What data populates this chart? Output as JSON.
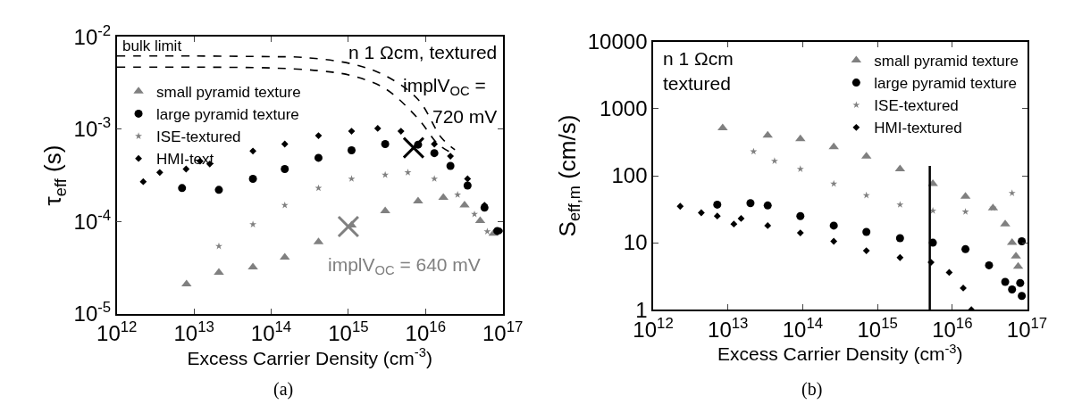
{
  "chart_data": [
    {
      "type": "scatter",
      "xlabel": "Excess Carrier Density (cm$^{-3}$)",
      "ylabel": "τ$_{eff}$ (s)",
      "log": "xy",
      "legend": "top left",
      "xlim": [
        1000000000000.0,
        1e+17
      ],
      "ylim": [
        1e-05,
        0.01
      ],
      "xticks": [
        {
          "value": 1000000000000.0,
          "label": "10$^{12}$"
        },
        {
          "value": 10000000000000.0,
          "label": "10$^{13}$"
        },
        {
          "value": 100000000000000.0,
          "label": "10$^{14}$"
        },
        {
          "value": 1000000000000000.0,
          "label": "10$^{15}$"
        },
        {
          "value": 1e+16,
          "label": "10$^{16}$"
        },
        {
          "value": 1e+17,
          "label": "10$^{17}$"
        }
      ],
      "yticks": [
        {
          "value": 1e-05,
          "label": "10$^{-5}$"
        },
        {
          "value": 0.0001,
          "label": "10$^{-4}$"
        },
        {
          "value": 0.001,
          "label": "10$^{-3}$"
        },
        {
          "value": 0.01,
          "label": "10$^{-2}$"
        }
      ],
      "annotations": [
        "bulk limit",
        "n 1 Ωcm, textured",
        "implV$_{OC}$ =",
        "720 mV",
        "implV$_{OC}$ = 640 mV",
        "(a)"
      ],
      "series": [
        {
          "name": "small pyramid texture",
          "color": "#808080",
          "type": "scatter",
          "marker": "triangle",
          "x": [
            8000000000000.0,
            21000000000000.0,
            58000000000000.0,
            150000000000000.0,
            410000000000000.0,
            1100000000000000.0,
            3000000000000000.0,
            8000000000000000.0,
            1.7e+16,
            3.2e+16,
            5.1e+16,
            7.6e+16
          ],
          "values": [
            2.1e-05,
            2.8e-05,
            3.2e-05,
            4.1e-05,
            6e-05,
            9.1e-05,
            0.00013,
            0.000166,
            0.000182,
            0.00015,
            0.000102,
            7.4e-05
          ]
        },
        {
          "name": "large pyramid texture",
          "color": "#000000",
          "type": "scatter",
          "marker": "circle",
          "x": [
            7000000000000.0,
            21000000000000.0,
            58000000000000.0,
            150000000000000.0,
            410000000000000.0,
            1100000000000000.0,
            3000000000000000.0,
            8000000000000000.0,
            1.3e+16,
            2.1e+16,
            3.5e+16,
            5.8e+16,
            8.5e+16
          ],
          "values": [
            0.00023,
            0.00022,
            0.00029,
            0.00037,
            0.00049,
            0.00059,
            0.00069,
            0.00068,
            0.00055,
            0.0004,
            0.000245,
            0.000141,
            7.9e-05
          ]
        },
        {
          "name": "ISE-textured",
          "color": "#808080",
          "type": "scatter",
          "marker": "star",
          "x": [
            21000000000000.0,
            58000000000000.0,
            150000000000000.0,
            410000000000000.0,
            1100000000000000.0,
            3000000000000000.0,
            5900000000000000.0,
            1.3e+16,
            2.6e+16,
            4.3e+16,
            6.3e+16
          ],
          "values": [
            5.4e-05,
            9.3e-05,
            0.00015,
            0.00023,
            0.00029,
            0.00032,
            0.00034,
            0.00029,
            0.000195,
            0.00012,
            7.8e-05
          ]
        },
        {
          "name": "HMI-text",
          "color": "#000000",
          "type": "scatter",
          "marker": "diamond",
          "x": [
            2200000000000.0,
            3600000000000.0,
            7900000000000.0,
            12000000000000.0,
            16000000000000.0,
            58000000000000.0,
            150000000000000.0,
            410000000000000.0,
            1100000000000000.0,
            2400000000000000.0,
            4800000000000000.0,
            1.3e+16,
            2.1e+16,
            3.5e+16,
            5.8e+16,
            9.3e+16
          ],
          "values": [
            0.00027,
            0.00034,
            0.00037,
            0.00045,
            0.00042,
            0.00058,
            0.00069,
            0.00085,
            0.00095,
            0.00102,
            0.00095,
            0.00069,
            0.00051,
            0.00029,
            0.00015,
            7.9e-05
          ]
        },
        {
          "color": "#000000",
          "type": "line",
          "line_style": "dashed",
          "marker": "none",
          "x": [
            1000000000000.0,
            10000000000000.0,
            100000000000000.0,
            250000000000000.0,
            1100000000000000.0,
            3000000000000000.0,
            8000000000000000.0,
            1.6e+16,
            2.4e+16
          ],
          "values": [
            0.0062,
            0.0062,
            0.0061,
            0.006,
            0.0051,
            0.0038,
            0.0021,
            0.00081,
            0.0006
          ]
        },
        {
          "color": "#000000",
          "type": "line",
          "line_style": "dashed",
          "marker": "none",
          "x": [
            1000000000000.0,
            10000000000000.0,
            100000000000000.0,
            410000000000000.0,
            1100000000000000.0,
            3000000000000000.0,
            8000000000000000.0,
            1.45e+16,
            2.2e+16
          ],
          "values": [
            0.0047,
            0.0047,
            0.0046,
            0.0043,
            0.0038,
            0.00275,
            0.0013,
            0.00069,
            0.00055
          ]
        },
        {
          "color": "#000000",
          "type": "scatter",
          "marker": "cross",
          "x": [
            7000000000000000.0
          ],
          "values": [
            0.00063
          ]
        },
        {
          "color": "#808080",
          "type": "scatter",
          "marker": "cross",
          "x": [
            1000000000000000.0
          ],
          "values": [
            8.8e-05
          ]
        }
      ]
    },
    {
      "type": "scatter",
      "xlabel": "Excess Carrier Density (cm$^{-3}$)",
      "ylabel": "S$_{eff,m}$ (cm/s)",
      "log": "xy",
      "legend": "top right",
      "xlim": [
        1000000000000.0,
        1e+17
      ],
      "ylim": [
        1,
        10000
      ],
      "xticks": [
        {
          "value": 1000000000000.0,
          "label": "10$^{12}$"
        },
        {
          "value": 10000000000000.0,
          "label": "10$^{13}$"
        },
        {
          "value": 100000000000000.0,
          "label": "10$^{14}$"
        },
        {
          "value": 1000000000000000.0,
          "label": "10$^{15}$"
        },
        {
          "value": 1e+16,
          "label": "10$^{16}$"
        },
        {
          "value": 1e+17,
          "label": "10$^{17}$"
        }
      ],
      "yticks": [
        1,
        10,
        100,
        1000,
        10000
      ],
      "annotations": [
        "n 1 Ωcm",
        "textured",
        "(b)"
      ],
      "series": [
        {
          "name": "small pyramid texture",
          "color": "#808080",
          "type": "scatter",
          "marker": "triangle",
          "x": [
            8500000000000.0,
            34000000000000.0,
            93000000000000.0,
            260000000000000.0,
            710000000000000.0,
            2000000000000000.0,
            5500000000000000.0,
            1.5e+16,
            3.5e+16,
            5.1e+16,
            6.3e+16,
            7.1e+16,
            7.6e+16
          ],
          "values": [
            515,
            400,
            355,
            270,
            195,
            126,
            76,
            49,
            33,
            19,
            10,
            6.3,
            4.4
          ]
        },
        {
          "name": "large pyramid texture",
          "color": "#000000",
          "type": "scatter",
          "marker": "circle",
          "x": [
            7200000000000.0,
            20000000000000.0,
            34000000000000.0,
            93000000000000.0,
            260000000000000.0,
            710000000000000.0,
            2000000000000000.0,
            5500000000000000.0,
            1.5e+16,
            3.1e+16,
            5.1e+16,
            6.3e+16,
            8.1e+16,
            8.5e+16,
            8.5e+16
          ],
          "values": [
            37,
            39,
            36,
            25,
            18,
            14.5,
            11.7,
            10,
            8,
            4.6,
            2.6,
            2,
            2.5,
            10.5,
            1.6
          ]
        },
        {
          "name": "ISE-textured",
          "color": "#808080",
          "type": "scatter",
          "marker": "star",
          "x": [
            22000000000000.0,
            42000000000000.0,
            93000000000000.0,
            260000000000000.0,
            710000000000000.0,
            2000000000000000.0,
            5500000000000000.0,
            1.5e+16,
            3.5e+16,
            6.3e+16
          ],
          "values": [
            230,
            166,
            126,
            76,
            51,
            37,
            30,
            29,
            33,
            55
          ]
        },
        {
          "name": "HMI-textured",
          "color": "#000000",
          "type": "scatter",
          "marker": "diamond",
          "x": [
            2300000000000.0,
            4400000000000.0,
            7200000000000.0,
            12000000000000.0,
            15000000000000.0,
            34000000000000.0,
            93000000000000.0,
            260000000000000.0,
            710000000000000.0,
            2000000000000000.0,
            5200000000000000.0,
            9100000000000000.0,
            1.4e+16,
            1.8e+16
          ],
          "values": [
            35,
            28,
            25,
            19,
            23,
            18,
            14,
            10.5,
            7.6,
            6,
            5.1,
            3.6,
            2.1,
            1
          ]
        },
        {
          "color": "#000000",
          "type": "line",
          "line_style": "solid",
          "marker": "none",
          "x": [
            5000000000000000.0,
            5000000000000000.0
          ],
          "values": [
            1,
            140
          ]
        }
      ]
    }
  ]
}
